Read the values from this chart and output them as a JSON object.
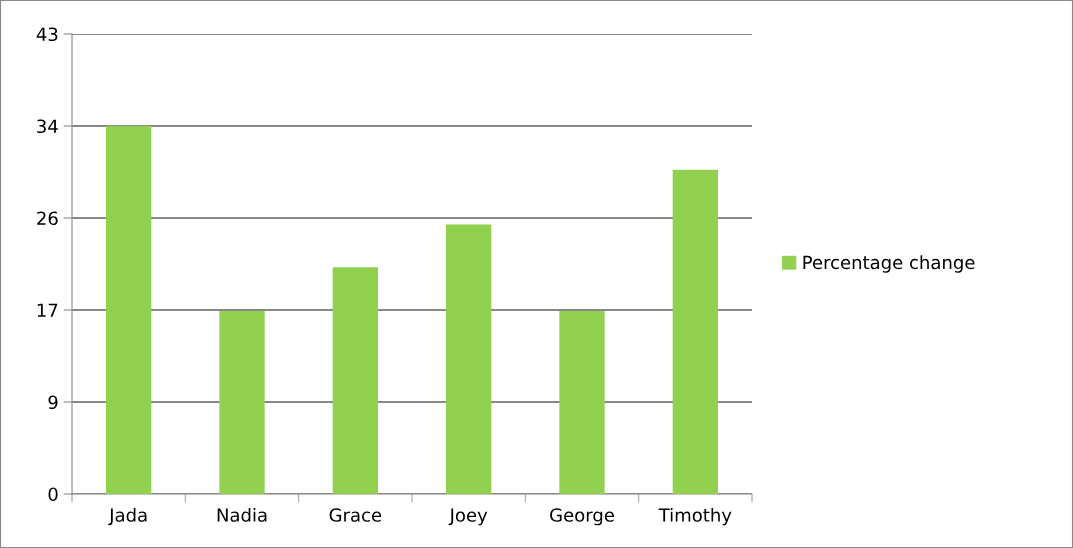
{
  "chart_data": {
    "type": "bar",
    "categories": [
      "Jada",
      "Nadia",
      "Grace",
      "Joey",
      "George",
      "Timothy"
    ],
    "series": [
      {
        "name": "Percentage change",
        "color": "#92d050",
        "values": [
          34.4,
          17.1,
          21.2,
          25.2,
          17.1,
          30.3
        ]
      }
    ],
    "ylim": [
      0,
      43
    ],
    "yticks": [
      0,
      {
        "value": 8.6,
        "label": "9"
      },
      {
        "value": 17.2,
        "label": "17"
      },
      {
        "value": 25.8,
        "label": "26"
      },
      {
        "value": 34.4,
        "label": "34"
      },
      43
    ],
    "grid": "y",
    "legend": "right"
  }
}
